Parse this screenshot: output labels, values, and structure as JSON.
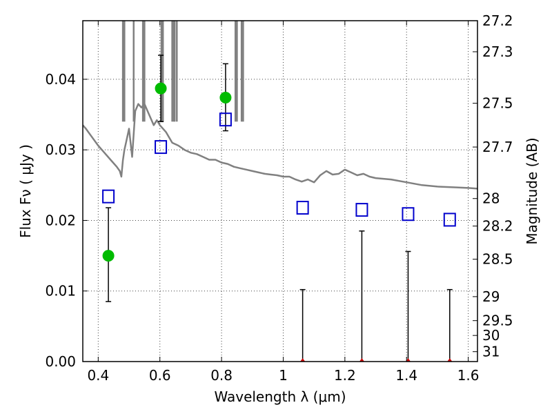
{
  "chart_data": {
    "type": "scatter",
    "xlabel": "Wavelength  λ (μm)",
    "ylabel": "Flux  Fν  ( μJy )",
    "y2label": "Magnitude (AB)",
    "xlim": [
      0.35,
      1.63
    ],
    "ylim": [
      0,
      0.0483
    ],
    "grid": true,
    "x_ticks": [
      0.4,
      0.6,
      0.8,
      1.0,
      1.2,
      1.4,
      1.6
    ],
    "x_tick_labels": [
      "0.4",
      "0.6",
      "0.8",
      "1",
      "1.2",
      "1.4",
      "1.6"
    ],
    "y_ticks": [
      0,
      0.01,
      0.02,
      0.03,
      0.04
    ],
    "y_tick_labels": [
      "0.00",
      "0.01",
      "0.02",
      "0.03",
      "0.04"
    ],
    "y2_ticks": [
      {
        "label": "27.2",
        "flux": 0.0483
      },
      {
        "label": "27.3",
        "flux": 0.0439
      },
      {
        "label": "27.5",
        "flux": 0.0366
      },
      {
        "label": "27.7",
        "flux": 0.0304
      },
      {
        "label": "28",
        "flux": 0.0231
      },
      {
        "label": "28.2",
        "flux": 0.0192
      },
      {
        "label": "28.5",
        "flux": 0.0145
      },
      {
        "label": "29",
        "flux": 0.0092
      },
      {
        "label": "29.5",
        "flux": 0.0058
      },
      {
        "label": "30",
        "flux": 0.0037
      },
      {
        "label": "31",
        "flux": 0.0014
      }
    ],
    "colors": {
      "spectrum": "#808080",
      "detection": "#00bb00",
      "model": "#0000cc",
      "upper_limit": "#cc0000",
      "error_bar": "#000000"
    },
    "series": [
      {
        "kind": "spectrum",
        "x": [
          0.35,
          0.36,
          0.38,
          0.4,
          0.42,
          0.44,
          0.46,
          0.47,
          0.475,
          0.48,
          0.485,
          0.49,
          0.5,
          0.51,
          0.52,
          0.53,
          0.54,
          0.55,
          0.56,
          0.57,
          0.58,
          0.59,
          0.6,
          0.62,
          0.64,
          0.66,
          0.68,
          0.7,
          0.72,
          0.74,
          0.76,
          0.78,
          0.8,
          0.82,
          0.84,
          0.86,
          0.88,
          0.9,
          0.92,
          0.94,
          0.96,
          0.98,
          1.0,
          1.02,
          1.04,
          1.06,
          1.08,
          1.1,
          1.12,
          1.14,
          1.16,
          1.18,
          1.2,
          1.22,
          1.24,
          1.26,
          1.28,
          1.3,
          1.35,
          1.4,
          1.45,
          1.5,
          1.55,
          1.6,
          1.63
        ],
        "y": [
          0.0335,
          0.033,
          0.0318,
          0.0306,
          0.0296,
          0.0286,
          0.0276,
          0.027,
          0.0262,
          0.0285,
          0.03,
          0.031,
          0.033,
          0.029,
          0.0355,
          0.0365,
          0.036,
          0.0365,
          0.0355,
          0.0345,
          0.0335,
          0.0342,
          0.0335,
          0.0325,
          0.031,
          0.0306,
          0.03,
          0.0296,
          0.0294,
          0.029,
          0.0286,
          0.0286,
          0.0282,
          0.028,
          0.0276,
          0.0274,
          0.0272,
          0.027,
          0.0268,
          0.0266,
          0.0265,
          0.0264,
          0.0262,
          0.0262,
          0.0258,
          0.0255,
          0.0258,
          0.0254,
          0.0264,
          0.027,
          0.0265,
          0.0266,
          0.0272,
          0.0268,
          0.0264,
          0.0266,
          0.0262,
          0.026,
          0.0258,
          0.0254,
          0.025,
          0.0248,
          0.0247,
          0.0246,
          0.0245
        ]
      },
      {
        "kind": "spectrum_lines",
        "x": [
          0.48,
          0.485,
          0.515,
          0.545,
          0.55,
          0.605,
          0.61,
          0.64,
          0.645,
          0.648,
          0.655,
          0.845,
          0.85,
          0.865,
          0.87
        ]
      },
      {
        "kind": "detections",
        "x": [
          0.433,
          0.603,
          0.813
        ],
        "y": [
          0.015,
          0.0387,
          0.0374
        ],
        "err_low": [
          0.0085,
          0.034,
          0.0327
        ],
        "err_high": [
          0.0218,
          0.0434,
          0.0422
        ]
      },
      {
        "kind": "model_photometry",
        "x": [
          0.433,
          0.603,
          0.813,
          1.063,
          1.255,
          1.405,
          1.54
        ],
        "y": [
          0.0234,
          0.0304,
          0.0343,
          0.0218,
          0.0215,
          0.0209,
          0.0201
        ]
      },
      {
        "kind": "upper_limits",
        "x": [
          1.063,
          1.255,
          1.405,
          1.54
        ],
        "y": [
          0,
          0,
          0,
          0
        ],
        "err_high": [
          0.0102,
          0.0185,
          0.0156,
          0.0102
        ]
      }
    ]
  }
}
